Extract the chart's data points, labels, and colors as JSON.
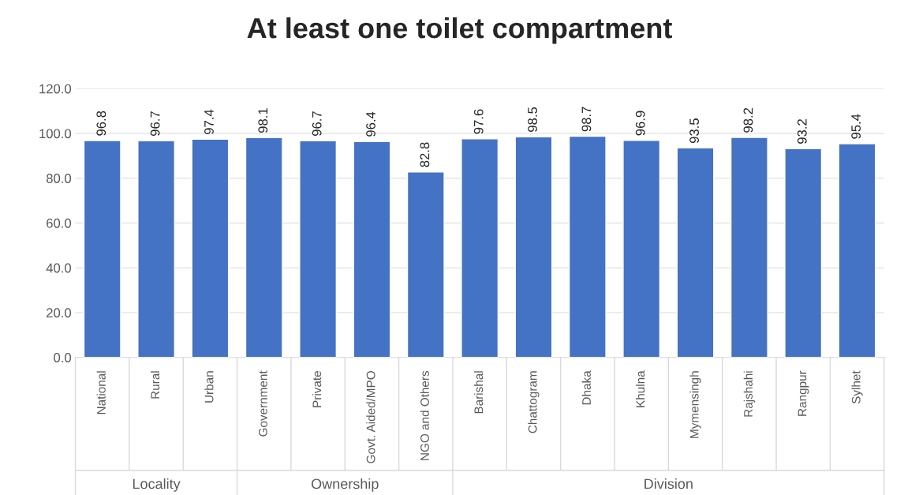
{
  "chart_data": {
    "type": "bar",
    "title": "At least one toilet compartment",
    "categories": [
      "National",
      "Rural",
      "Urban",
      "Government",
      "Private",
      "Govt. Aided/MPO",
      "NGO and Others",
      "Barishal",
      "Chattogram",
      "Dhaka",
      "Khulna",
      "Mymensingh",
      "Rajshahi",
      "Rangpur",
      "Sylhet"
    ],
    "values": [
      96.8,
      96.7,
      97.4,
      98.1,
      96.7,
      96.4,
      82.8,
      97.6,
      98.5,
      98.7,
      96.9,
      93.5,
      98.2,
      93.2,
      95.4
    ],
    "value_labels": [
      "96.8",
      "96.7",
      "97.4",
      "98.1",
      "96.7",
      "96.4",
      "82.8",
      "97.6",
      "98.5",
      "98.7",
      "96.9",
      "93.5",
      "98.2",
      "93.2",
      "95.4"
    ],
    "color": "#4472c4",
    "ylim": [
      0,
      120
    ],
    "yticks": [
      {
        "value": 0,
        "label": "0.0"
      },
      {
        "value": 20,
        "label": "20.0"
      },
      {
        "value": 40,
        "label": "40.0"
      },
      {
        "value": 60,
        "label": "60.0"
      },
      {
        "value": 80,
        "label": "80.0"
      },
      {
        "value": 100,
        "label": "100.0"
      },
      {
        "value": 120,
        "label": "120.0"
      }
    ],
    "grid": "y",
    "annotations": [
      "Locality",
      "Ownership",
      "Division"
    ]
  }
}
